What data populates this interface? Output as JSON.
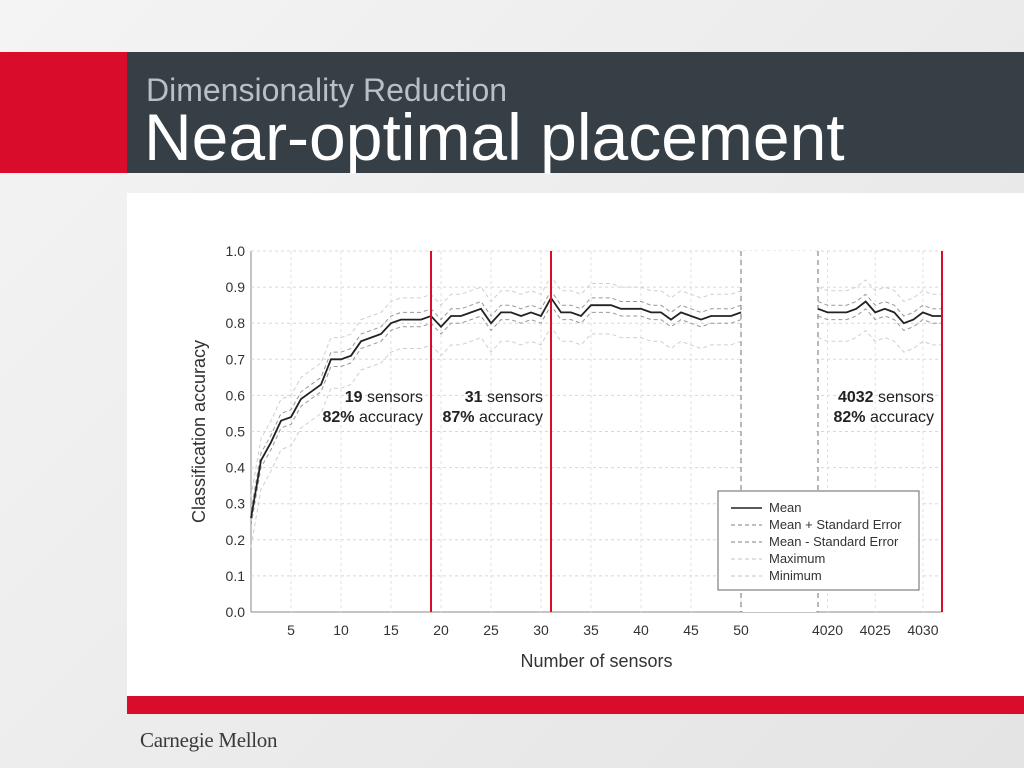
{
  "slide": {
    "subtitle": "Dimensionality Reduction",
    "title": "Near-optimal placement",
    "logo": "Carnegie Mellon",
    "colors": {
      "accent": "#d90d2b",
      "band": "#353f45"
    }
  },
  "chart_data": {
    "type": "line",
    "xlabel": "Number of sensors",
    "ylabel": "Classification accuracy",
    "ylim": [
      0,
      1
    ],
    "yticks": [
      "0.0",
      "0.1",
      "0.2",
      "0.3",
      "0.4",
      "0.5",
      "0.6",
      "0.7",
      "0.8",
      "0.9",
      "1.0"
    ],
    "segments": [
      {
        "xlim": [
          1,
          50
        ],
        "xticks": [
          "5",
          "10",
          "15",
          "20",
          "25",
          "30",
          "35",
          "40",
          "45",
          "50"
        ]
      },
      {
        "xlim": [
          4019,
          4032
        ],
        "xticks": [
          "4020",
          "4025",
          "4030"
        ]
      }
    ],
    "series": [
      {
        "name": "Mean",
        "segment1": [
          [
            1,
            0.26
          ],
          [
            2,
            0.42
          ],
          [
            3,
            0.47
          ],
          [
            4,
            0.53
          ],
          [
            5,
            0.54
          ],
          [
            6,
            0.59
          ],
          [
            7,
            0.61
          ],
          [
            8,
            0.63
          ],
          [
            9,
            0.7
          ],
          [
            10,
            0.7
          ],
          [
            11,
            0.71
          ],
          [
            12,
            0.75
          ],
          [
            13,
            0.76
          ],
          [
            14,
            0.77
          ],
          [
            15,
            0.8
          ],
          [
            16,
            0.81
          ],
          [
            17,
            0.81
          ],
          [
            18,
            0.81
          ],
          [
            19,
            0.82
          ],
          [
            20,
            0.79
          ],
          [
            21,
            0.82
          ],
          [
            22,
            0.82
          ],
          [
            23,
            0.83
          ],
          [
            24,
            0.84
          ],
          [
            25,
            0.8
          ],
          [
            26,
            0.83
          ],
          [
            27,
            0.83
          ],
          [
            28,
            0.82
          ],
          [
            29,
            0.83
          ],
          [
            30,
            0.82
          ],
          [
            31,
            0.87
          ],
          [
            32,
            0.83
          ],
          [
            33,
            0.83
          ],
          [
            34,
            0.82
          ],
          [
            35,
            0.85
          ],
          [
            36,
            0.85
          ],
          [
            37,
            0.85
          ],
          [
            38,
            0.84
          ],
          [
            39,
            0.84
          ],
          [
            40,
            0.84
          ],
          [
            41,
            0.83
          ],
          [
            42,
            0.83
          ],
          [
            43,
            0.81
          ],
          [
            44,
            0.83
          ],
          [
            45,
            0.82
          ],
          [
            46,
            0.81
          ],
          [
            47,
            0.82
          ],
          [
            48,
            0.82
          ],
          [
            49,
            0.82
          ],
          [
            50,
            0.83
          ]
        ],
        "segment2": [
          [
            4019,
            0.84
          ],
          [
            4020,
            0.83
          ],
          [
            4021,
            0.83
          ],
          [
            4022,
            0.83
          ],
          [
            4023,
            0.84
          ],
          [
            4024,
            0.86
          ],
          [
            4025,
            0.83
          ],
          [
            4026,
            0.84
          ],
          [
            4027,
            0.83
          ],
          [
            4028,
            0.8
          ],
          [
            4029,
            0.81
          ],
          [
            4030,
            0.83
          ],
          [
            4031,
            0.82
          ],
          [
            4032,
            0.82
          ]
        ]
      },
      {
        "name": "Mean + Standard Error",
        "offset": 0.02
      },
      {
        "name": "Mean - Standard Error",
        "offset": -0.02
      },
      {
        "name": "Maximum",
        "offset": 0.06
      },
      {
        "name": "Minimum",
        "offset": -0.08
      }
    ],
    "markers": [
      {
        "x": 19,
        "segment": 1,
        "count": "19",
        "count_suffix": " sensors",
        "pct": "82%",
        "pct_suffix": " accuracy"
      },
      {
        "x": 31,
        "segment": 1,
        "count": "31",
        "count_suffix": " sensors",
        "pct": "87%",
        "pct_suffix": " accuracy"
      },
      {
        "x": 4032,
        "segment": 2,
        "count": "4032",
        "count_suffix": " sensors",
        "pct": "82%",
        "pct_suffix": " accuracy"
      }
    ],
    "legend": {
      "placement": "bottom-right",
      "entries": [
        "Mean",
        "Mean + Standard Error",
        "Mean - Standard Error",
        "Maximum",
        "Minimum"
      ]
    }
  }
}
